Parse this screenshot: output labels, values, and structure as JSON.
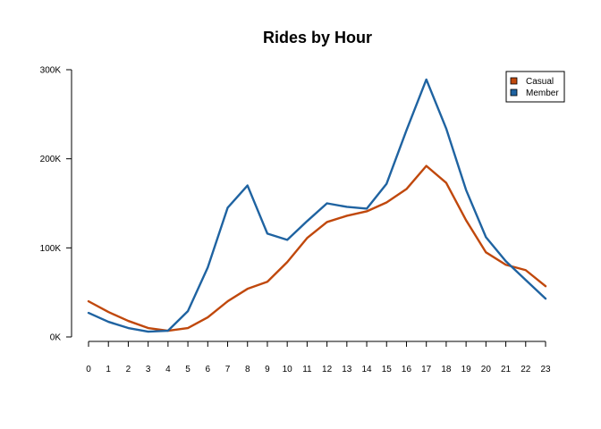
{
  "chart_data": {
    "type": "line",
    "title": "Rides by Hour",
    "xlabel": "",
    "ylabel": "",
    "x": [
      0,
      1,
      2,
      3,
      4,
      5,
      6,
      7,
      8,
      9,
      10,
      11,
      12,
      13,
      14,
      15,
      16,
      17,
      18,
      19,
      20,
      21,
      22,
      23
    ],
    "x_tick_labels": [
      "0",
      "1",
      "2",
      "3",
      "4",
      "5",
      "6",
      "7",
      "8",
      "9",
      "10",
      "11",
      "12",
      "13",
      "14",
      "15",
      "16",
      "17",
      "18",
      "19",
      "20",
      "21",
      "22",
      "23"
    ],
    "xlim": [
      0,
      23
    ],
    "ylim": [
      0,
      300000
    ],
    "y_ticks": [
      0,
      100000,
      200000,
      300000
    ],
    "y_tick_labels": [
      "0K",
      "100K",
      "200K",
      "300K"
    ],
    "grid": false,
    "legend_position": "top-right",
    "series": [
      {
        "name": "Casual",
        "color": "#c0480c",
        "values": [
          40000,
          28000,
          18000,
          10000,
          7000,
          10000,
          22000,
          40000,
          54000,
          62000,
          84000,
          111000,
          129000,
          136000,
          141000,
          151000,
          166000,
          192000,
          173000,
          131000,
          95000,
          81000,
          75000,
          57000
        ]
      },
      {
        "name": "Member",
        "color": "#1f63a1",
        "values": [
          27000,
          17000,
          10000,
          6000,
          7000,
          29000,
          78000,
          145000,
          170000,
          116000,
          109000,
          130000,
          150000,
          146000,
          144000,
          172000,
          232000,
          289000,
          234000,
          165000,
          112000,
          85000,
          64000,
          43000
        ]
      }
    ]
  }
}
